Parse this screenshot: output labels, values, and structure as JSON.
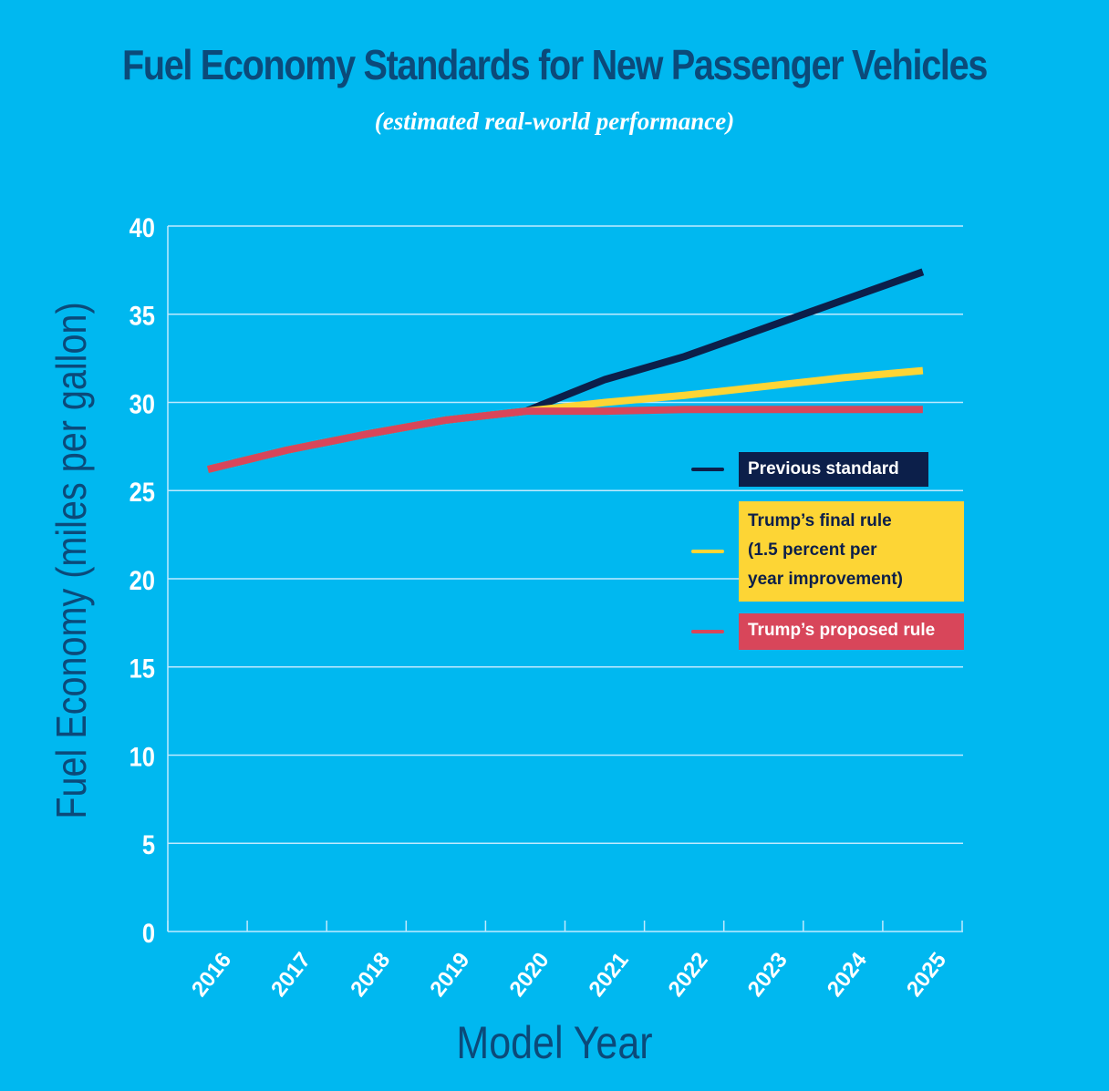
{
  "colors": {
    "background": "#00b8f0",
    "title": "#0b4a7a",
    "grid": "#bfeaff",
    "previous": "#0c1f4a",
    "final": "#fdd535",
    "proposed": "#d8465a"
  },
  "chart_data": {
    "type": "line",
    "title": "Fuel Economy Standards for New Passenger Vehicles",
    "subtitle": "(estimated real-world performance)",
    "xlabel": "Model Year",
    "ylabel": "Fuel Economy (miles per gallon)",
    "ylim": [
      0,
      40
    ],
    "yticks": [
      0,
      5,
      10,
      15,
      20,
      25,
      30,
      35,
      40
    ],
    "ytick_labels": [
      "0",
      "5",
      "10",
      "15",
      "20",
      "25",
      "30",
      "35",
      "40"
    ],
    "x": [
      "2016",
      "2017",
      "2018",
      "2019",
      "2020",
      "2021",
      "2022",
      "2023",
      "2024",
      "2025"
    ],
    "grid": true,
    "legend_position": "right",
    "series": [
      {
        "name": "Previous standard",
        "color_key": "previous",
        "values": [
          26.2,
          27.3,
          28.2,
          29.0,
          29.5,
          31.3,
          32.6,
          34.2,
          35.8,
          37.4
        ]
      },
      {
        "name": "Trump's final rule (1.5 percent per year improvement)",
        "color_key": "final",
        "values": [
          26.2,
          27.3,
          28.2,
          29.0,
          29.5,
          30.0,
          30.4,
          30.9,
          31.4,
          31.8
        ]
      },
      {
        "name": "Trump's proposed rule",
        "color_key": "proposed",
        "values": [
          26.2,
          27.3,
          28.2,
          29.0,
          29.5,
          29.5,
          29.6,
          29.6,
          29.6,
          29.6
        ]
      }
    ]
  },
  "legend": [
    {
      "lines": [
        "Previous standard"
      ],
      "color_key": "previous",
      "text_color": "#ffffff"
    },
    {
      "lines": [
        "Trump’s final rule",
        "(1.5 percent per",
        "year improvement)"
      ],
      "color_key": "final",
      "text_color": "#0c1f4a"
    },
    {
      "lines": [
        "Trump’s proposed rule"
      ],
      "color_key": "proposed",
      "text_color": "#ffffff"
    }
  ]
}
